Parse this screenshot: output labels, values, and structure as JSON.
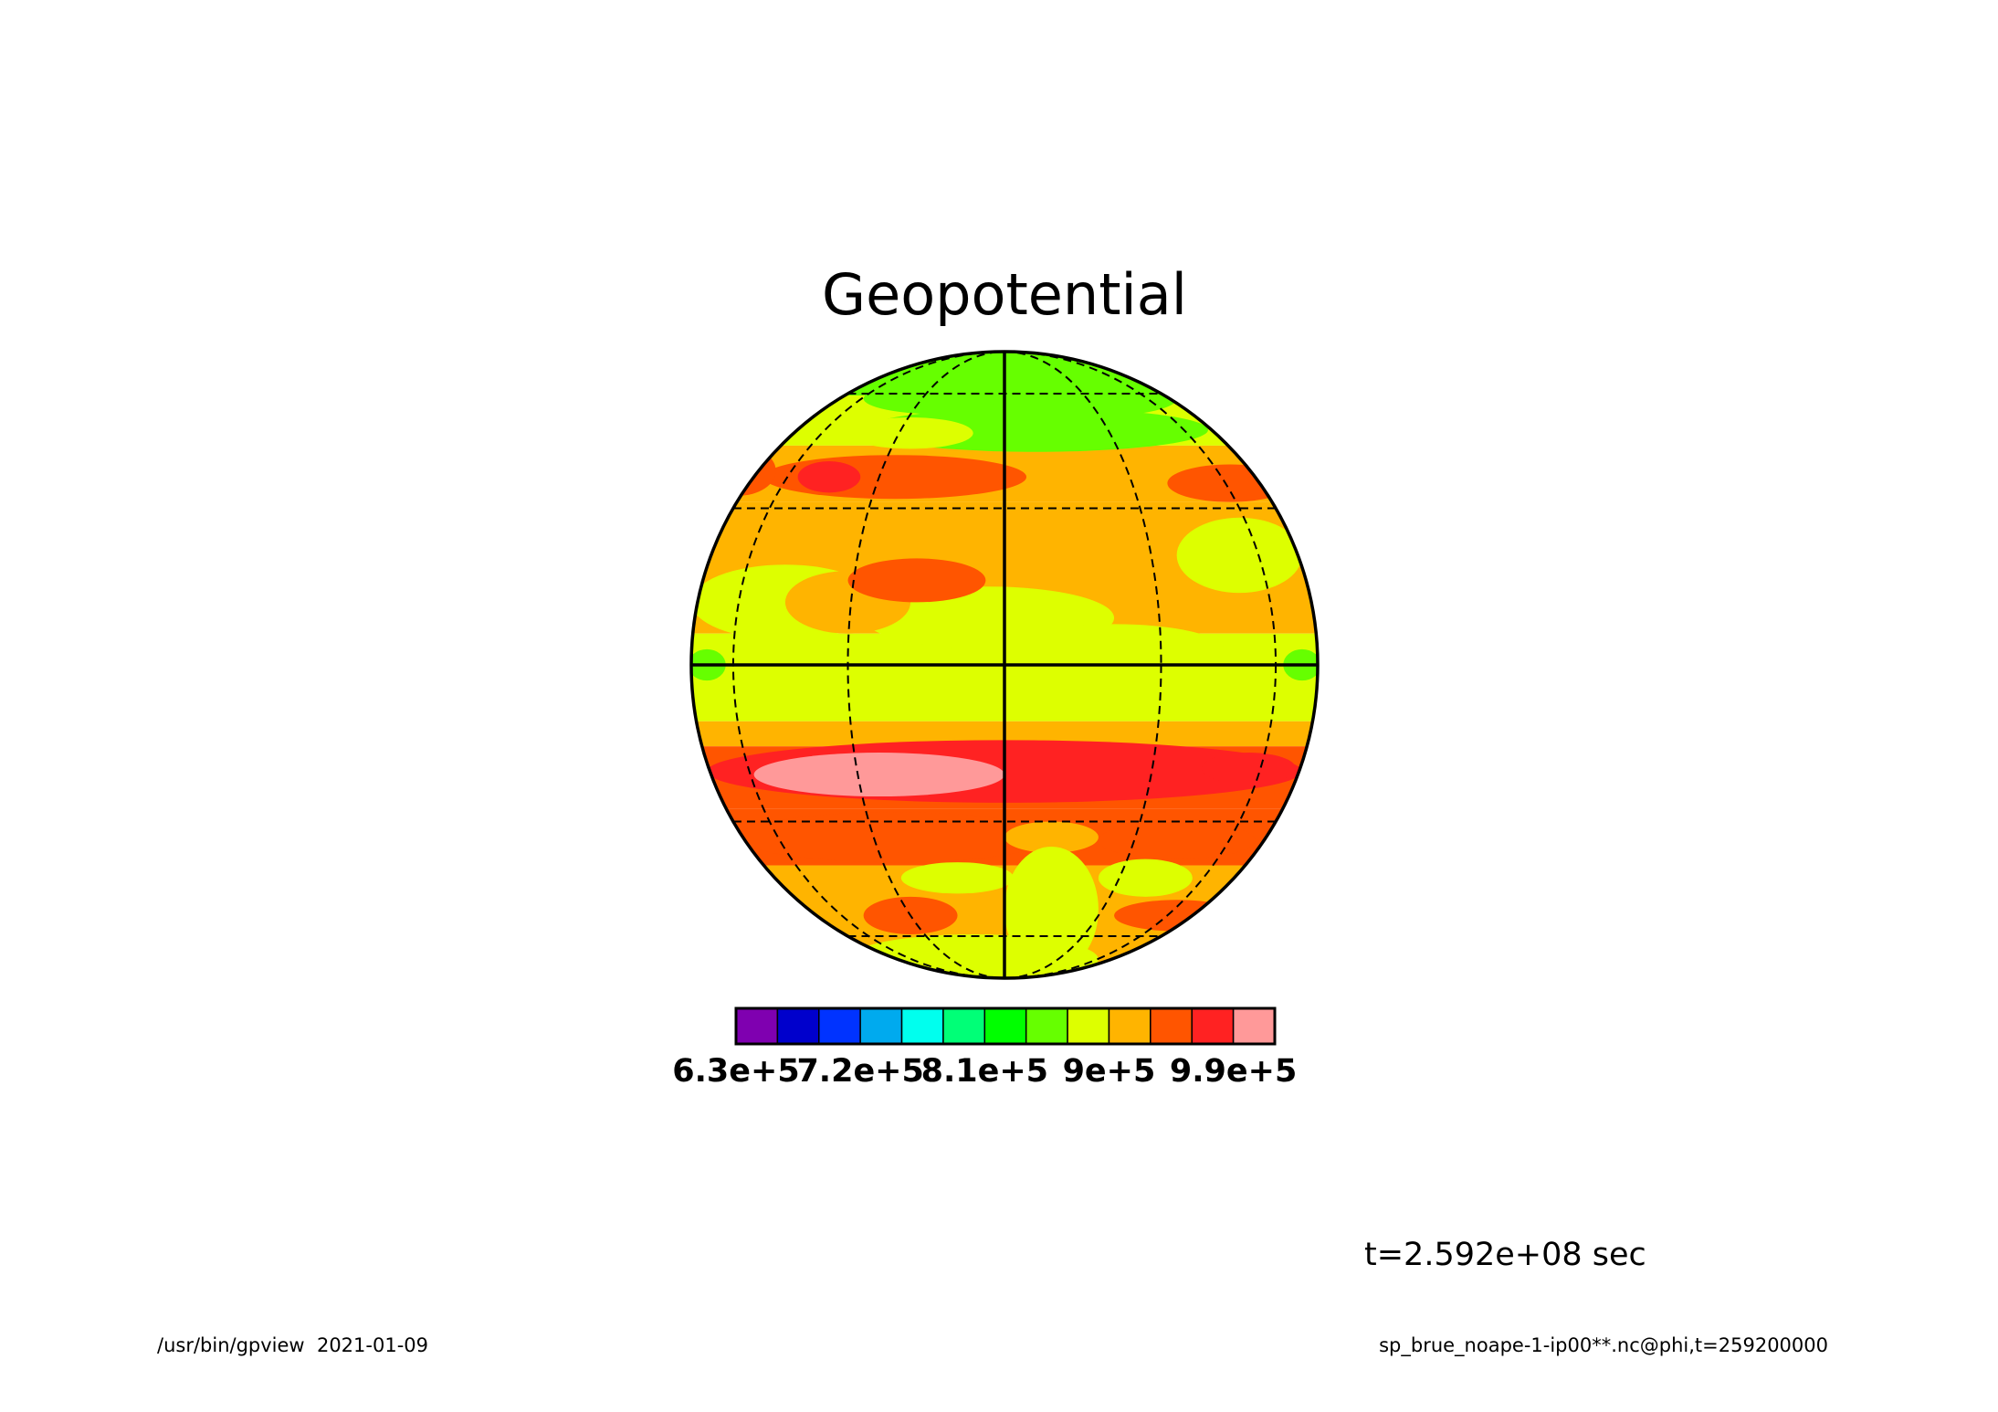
{
  "chart_data": {
    "type": "globe-contour",
    "title": "Geopotential",
    "colorbar": {
      "levels": [
        630000,
        660000,
        690000,
        720000,
        750000,
        780000,
        810000,
        840000,
        870000,
        900000,
        930000,
        960000,
        990000,
        1020000
      ],
      "colors": [
        "#7f00b0",
        "#0000cc",
        "#0033ff",
        "#00aaee",
        "#00ffee",
        "#00ff77",
        "#00ff00",
        "#66ff00",
        "#ddff00",
        "#ffb400",
        "#ff5500",
        "#ff2222",
        "#ff9999"
      ],
      "ticks": [
        {
          "value": 630000,
          "label": "6.3e+5"
        },
        {
          "value": 720000,
          "label": "7.2e+5"
        },
        {
          "value": 810000,
          "label": "8.1e+5"
        },
        {
          "value": 900000,
          "label": "9e+5"
        },
        {
          "value": 990000,
          "label": "9.9e+5"
        }
      ]
    },
    "time_label": "t=2.592e+08 sec",
    "footer_left": "/usr/bin/gpview  2021-01-09",
    "footer_right": "sp_brue_noape-1-ip00**.nc@phi,t=259200000"
  }
}
